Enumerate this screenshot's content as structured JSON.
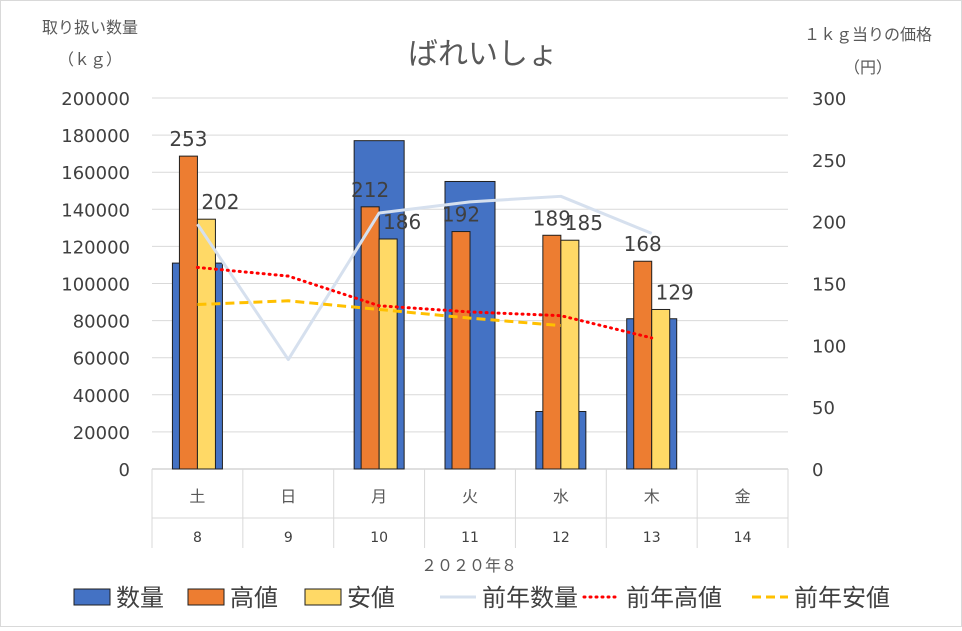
{
  "chart_data": {
    "type": "bar",
    "title": "ばれいしょ",
    "y_left_label_line1": "取り扱い数量",
    "y_left_label_line2": "（ｋｇ）",
    "y_right_label_line1": "１ｋｇ当りの価格",
    "y_right_label_line2": "（円）",
    "xlabel": "２０２０年８",
    "ylim_left": [
      0,
      200000
    ],
    "ylim_right": [
      0,
      300
    ],
    "yticks_left": [
      0,
      20000,
      40000,
      60000,
      80000,
      100000,
      120000,
      140000,
      160000,
      180000,
      200000
    ],
    "yticks_right": [
      0,
      50,
      100,
      150,
      200,
      250,
      300
    ],
    "categories": [
      {
        "weekday": "土",
        "day": "8"
      },
      {
        "weekday": "日",
        "day": "9"
      },
      {
        "weekday": "月",
        "day": "10"
      },
      {
        "weekday": "火",
        "day": "11"
      },
      {
        "weekday": "水",
        "day": "12"
      },
      {
        "weekday": "木",
        "day": "13"
      },
      {
        "weekday": "金",
        "day": "14"
      }
    ],
    "series": [
      {
        "name": "数量",
        "kind": "bar",
        "axis": "left",
        "color": "#4472C4",
        "values": [
          111000,
          null,
          177000,
          155000,
          31000,
          81000,
          null
        ]
      },
      {
        "name": "高値",
        "kind": "bar",
        "axis": "right",
        "color": "#ED7D31",
        "values": [
          253,
          null,
          212,
          192,
          189,
          168,
          null
        ]
      },
      {
        "name": "安値",
        "kind": "bar",
        "axis": "right",
        "color": "#FFD966",
        "values": [
          202,
          null,
          186,
          null,
          185,
          129,
          null
        ]
      },
      {
        "name": "前年数量",
        "kind": "line",
        "axis": "left",
        "color": "#D6E0EE",
        "values": [
          132000,
          59000,
          138000,
          144000,
          147000,
          127000,
          null
        ]
      },
      {
        "name": "前年高値",
        "kind": "line",
        "axis": "right",
        "color": "#FF0000",
        "style": "dotted",
        "values": [
          163,
          156,
          132,
          127,
          124,
          106,
          null
        ]
      },
      {
        "name": "前年安値",
        "kind": "line",
        "axis": "right",
        "color": "#FFC000",
        "style": "dashed",
        "values": [
          133,
          136,
          129,
          122,
          116,
          null,
          null
        ]
      }
    ],
    "data_labels": [
      {
        "series": "高値",
        "category_index": 0,
        "text": "253"
      },
      {
        "series": "安値",
        "category_index": 0,
        "text": "202"
      },
      {
        "series": "高値",
        "category_index": 2,
        "text": "212"
      },
      {
        "series": "安値",
        "category_index": 2,
        "text": "186"
      },
      {
        "series": "高値",
        "category_index": 3,
        "text": "192"
      },
      {
        "series": "高値",
        "category_index": 4,
        "text": "189"
      },
      {
        "series": "安値",
        "category_index": 4,
        "text": "185"
      },
      {
        "series": "高値",
        "category_index": 5,
        "text": "168"
      },
      {
        "series": "安値",
        "category_index": 5,
        "text": "129"
      }
    ],
    "legend": {
      "placement": "bottom"
    },
    "grid": true
  }
}
